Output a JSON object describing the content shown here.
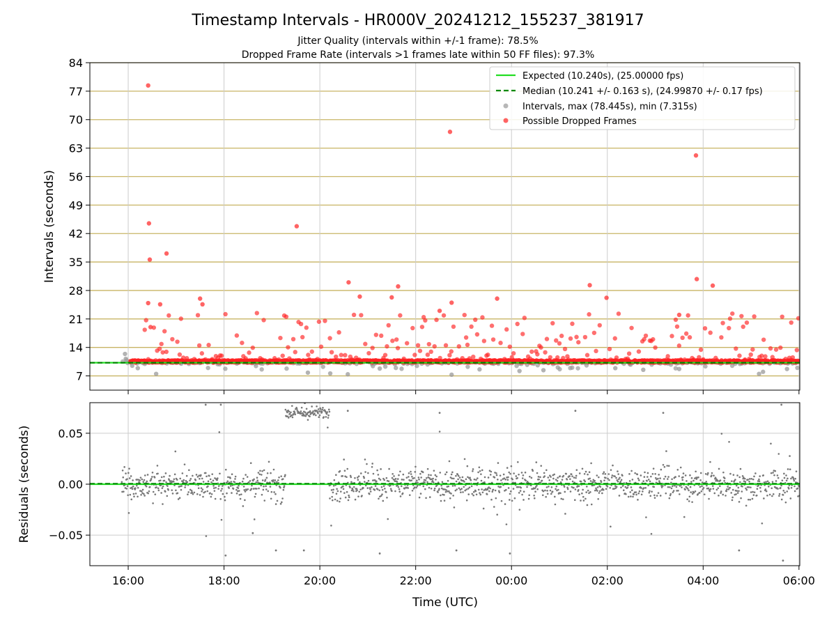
{
  "title": "Timestamp Intervals - HR000V_20241212_155237_381917",
  "subtitle_1": "Jitter Quality (intervals within +/-1 frame): 78.5%",
  "subtitle_2": "Dropped Frame Rate (intervals >1 frames late within 50 FF files): 97.3%",
  "colors": {
    "expected": "#22dd22",
    "median": "#008800",
    "intervals": "#999999",
    "dropped": "#ff2222",
    "residuals": "#777777",
    "y_grid": "#c8b464",
    "x_grid": "#cccccc"
  },
  "chart_data": [
    {
      "type": "scatter",
      "ylabel": "Intervals (seconds)",
      "xlabel": "",
      "x_unit": "UTC time",
      "xlim": [
        "2024-12-12 15:12",
        "2024-12-13 06:01"
      ],
      "ylim": [
        3.5,
        84
      ],
      "y_ticks": [
        7,
        14,
        21,
        28,
        35,
        42,
        49,
        56,
        63,
        70,
        77,
        84
      ],
      "x_ticks": [
        "16:00",
        "18:00",
        "20:00",
        "22:00",
        "00:00",
        "02:00",
        "04:00",
        "06:00"
      ],
      "grid": true,
      "legend_position": "top-right",
      "legend": [
        "Expected (10.240s), (25.00000 fps)",
        "Median (10.241 +/- 0.163 s), (24.99870 +/- 0.17 fps)",
        "Intervals, max (78.445s), min (7.315s)",
        "Possible Dropped Frames"
      ],
      "expected_interval": 10.24,
      "median_interval": 10.241,
      "data_start": "15:52",
      "data_end": "06:01",
      "series": [
        {
          "name": "Possible Dropped Frames",
          "points": [
            [
              "16:25",
              78.4
            ],
            [
              "16:26",
              44.5
            ],
            [
              "16:27",
              35.6
            ],
            [
              "16:48",
              37.1
            ],
            [
              "16:40",
              24.6
            ],
            [
              "16:25",
              24.9
            ],
            [
              "19:31",
              43.8
            ],
            [
              "20:36",
              30.0
            ],
            [
              "21:38",
              29.0
            ],
            [
              "22:43",
              67.0
            ],
            [
              "22:45",
              25.0
            ],
            [
              "23:42",
              26.0
            ],
            [
              "01:38",
              29.3
            ],
            [
              "01:59",
              26.2
            ],
            [
              "03:51",
              61.2
            ],
            [
              "03:52",
              30.8
            ],
            [
              "04:12",
              29.2
            ],
            [
              "16:28",
              19.0
            ],
            [
              "17:30",
              26.0
            ],
            [
              "17:33",
              24.6
            ],
            [
              "20:50",
              26.5
            ],
            [
              "21:30",
              26.3
            ],
            [
              "22:30",
              23.0
            ],
            [
              "03:30",
              22.0
            ]
          ]
        },
        {
          "name": "Intervals",
          "points": [
            [
              "15:56",
              12.4
            ],
            [
              "15:57",
              11.2
            ],
            [
              "15:58",
              10.8
            ],
            [
              "16:05",
              9.5
            ],
            [
              "16:12",
              8.9
            ],
            [
              "16:35",
              7.5
            ],
            [
              "19:45",
              7.8
            ],
            [
              "20:13",
              7.6
            ],
            [
              "20:35",
              7.4
            ],
            [
              "21:15",
              8.8
            ],
            [
              "22:45",
              7.3
            ],
            [
              "23:20",
              8.6
            ],
            [
              "00:10",
              8.2
            ],
            [
              "00:40",
              8.4
            ],
            [
              "02:10",
              8.9
            ],
            [
              "02:45",
              8.5
            ],
            [
              "03:30",
              8.7
            ],
            [
              "05:10",
              7.5
            ],
            [
              "05:15",
              8.0
            ],
            [
              "05:45",
              8.7
            ]
          ]
        },
        {
          "name": "Expected",
          "points": [
            [
              "15:12",
              10.24
            ],
            [
              "06:01",
              10.24
            ]
          ]
        },
        {
          "name": "Median",
          "points": [
            [
              "15:12",
              10.241
            ],
            [
              "06:01",
              10.241
            ]
          ]
        }
      ]
    },
    {
      "type": "scatter",
      "ylabel": "Residuals (seconds)",
      "xlabel": "Time (UTC)",
      "xlim": [
        "2024-12-12 15:12",
        "2024-12-13 06:01"
      ],
      "ylim": [
        -0.08,
        0.08
      ],
      "y_ticks": [
        -0.05,
        0.0,
        0.05
      ],
      "y_tick_labels": [
        "−0.05",
        "0.00",
        "0.05"
      ],
      "x_ticks": [
        "16:00",
        "18:00",
        "20:00",
        "22:00",
        "00:00",
        "02:00",
        "04:00",
        "06:00"
      ],
      "grid": true,
      "series": [
        {
          "name": "Residuals",
          "segments": [
            {
              "start": "15:52",
              "end": "19:17",
              "center": 0.0,
              "spread": 0.015
            },
            {
              "start": "19:17",
              "end": "20:12",
              "center": 0.07,
              "spread": 0.006
            },
            {
              "start": "20:12",
              "end": "06:01",
              "center": 0.0,
              "spread": 0.015
            }
          ],
          "outliers": [
            [
              "17:37",
              0.078
            ],
            [
              "17:56",
              0.078
            ],
            [
              "18:02",
              -0.07
            ],
            [
              "18:36",
              -0.048
            ],
            [
              "19:05",
              -0.065
            ],
            [
              "19:40",
              -0.065
            ],
            [
              "20:35",
              0.072
            ],
            [
              "21:15",
              -0.068
            ],
            [
              "22:30",
              0.07
            ],
            [
              "22:51",
              -0.065
            ],
            [
              "23:58",
              -0.068
            ],
            [
              "01:20",
              0.072
            ],
            [
              "03:10",
              0.07
            ],
            [
              "04:45",
              -0.065
            ],
            [
              "05:38",
              0.078
            ],
            [
              "05:40",
              -0.075
            ]
          ]
        }
      ]
    }
  ]
}
